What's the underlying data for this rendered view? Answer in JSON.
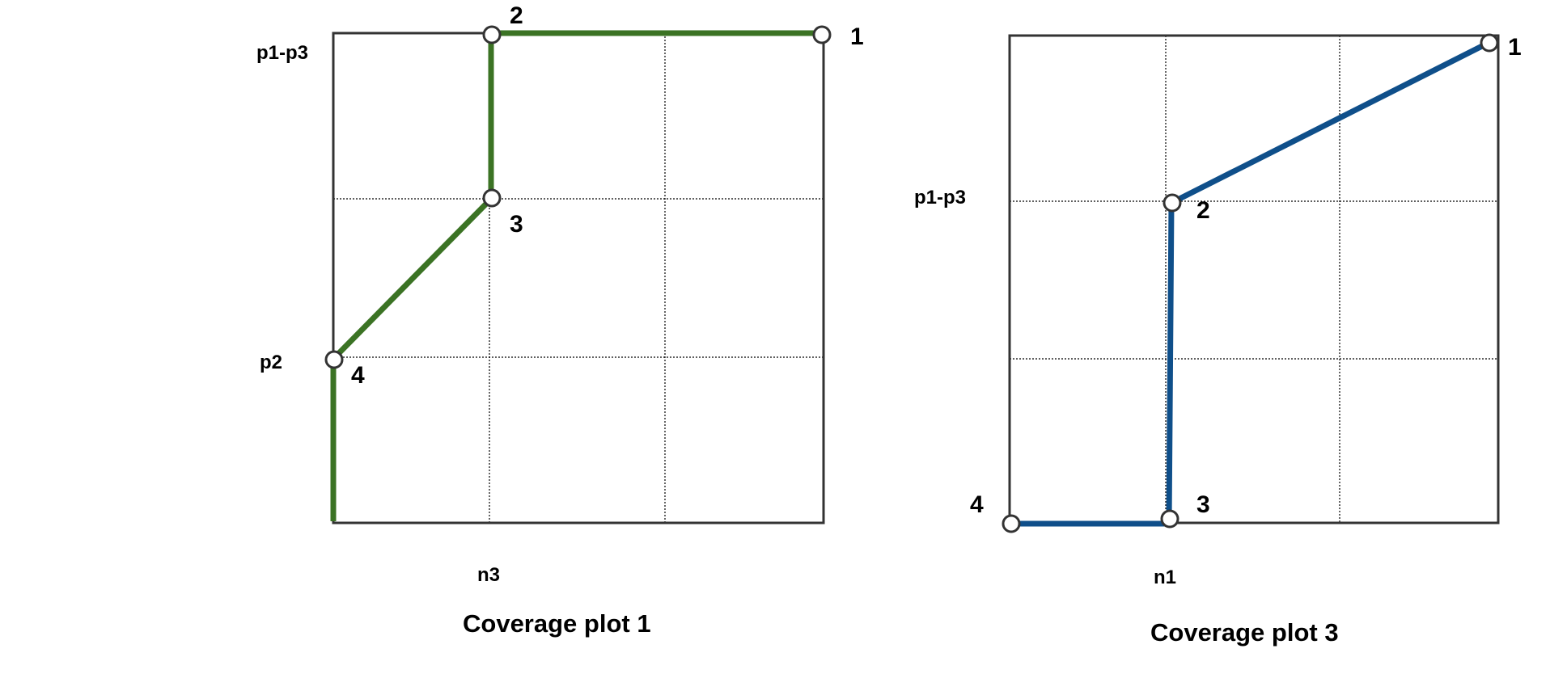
{
  "colors": {
    "plot1_path": "#3b7324",
    "plot3_path": "#0f4f8a",
    "frame": "#333333",
    "grid": "#000000"
  },
  "plot1": {
    "caption": "Coverage plot 1",
    "y_labels": {
      "top": "p1-p3",
      "middle": "p2"
    },
    "x_label": "n3",
    "nodes": {
      "n1": "1",
      "n2": "2",
      "n3": "3",
      "n4": "4"
    }
  },
  "plot3": {
    "caption": "Coverage plot 3",
    "y_label": "p1-p3",
    "x_label": "n1",
    "nodes": {
      "n1": "1",
      "n2": "2",
      "n3": "3",
      "n4": "4"
    }
  }
}
